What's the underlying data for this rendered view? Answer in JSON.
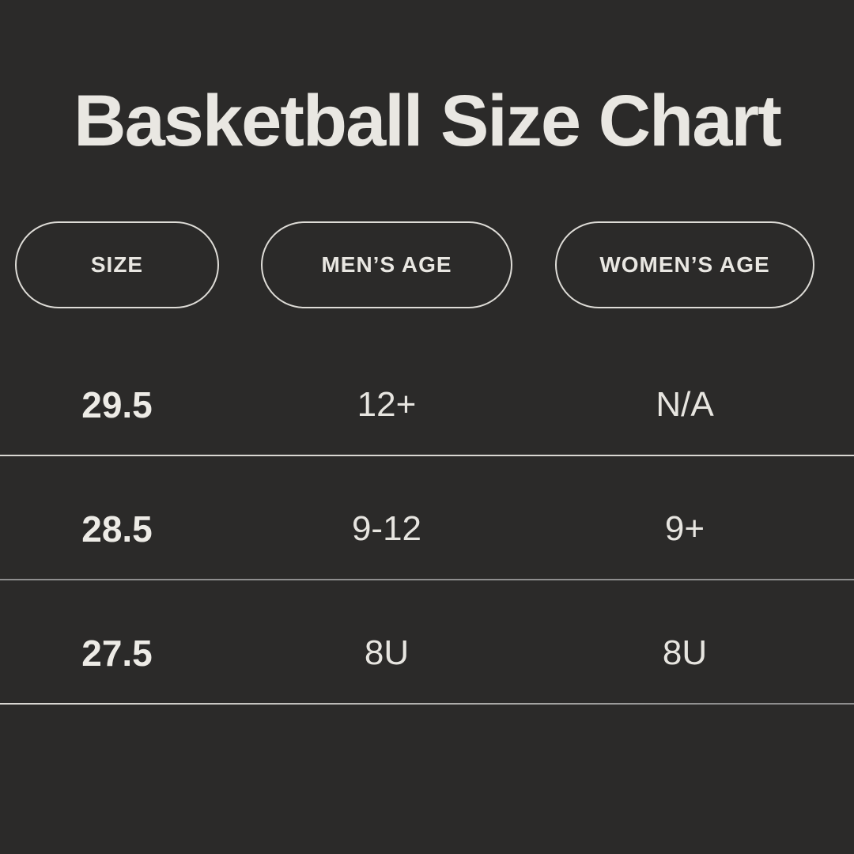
{
  "title": "Basketball Size Chart",
  "colors": {
    "background": "#2b2a29",
    "text": "#e9e7e2",
    "pill_border": "#dedcd7",
    "divider_light": "#d9d7d2",
    "divider_gray": "#8e8e8e"
  },
  "chart_data": {
    "type": "table",
    "title": "Basketball Size Chart",
    "columns": [
      "SIZE",
      "MEN’S AGE",
      "WOMEN’S AGE"
    ],
    "rows": [
      [
        "29.5",
        "12+",
        "N/A"
      ],
      [
        "28.5",
        "9-12",
        "9+"
      ],
      [
        "27.5",
        "8U",
        "8U"
      ]
    ]
  }
}
